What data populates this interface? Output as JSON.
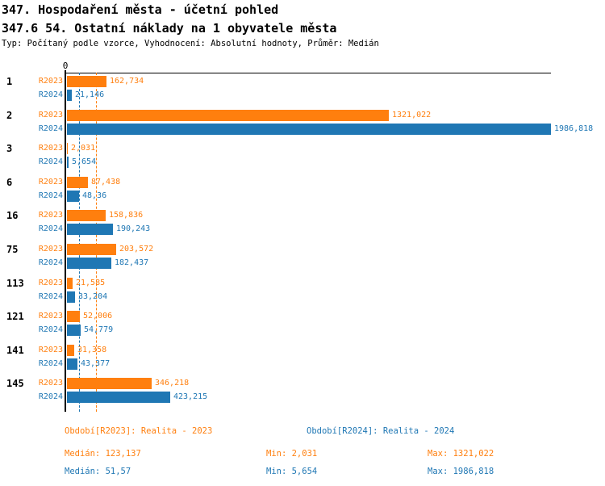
{
  "chart_data": {
    "type": "bar",
    "orientation": "horizontal",
    "title": "347. Hospodaření města - účetní pohled",
    "subtitle": "347.6 54. Ostatní náklady na 1 obyvatele města",
    "meta": "Typ: Počítaný podle vzorce, Vyhodnocení: Absolutní hodnoty, Průměr: Medián",
    "axis": {
      "zero_label": "0",
      "min": 0,
      "plot_max": 1986.818,
      "grid": false
    },
    "categories": [
      "1",
      "2",
      "3",
      "6",
      "16",
      "75",
      "113",
      "121",
      "141",
      "145"
    ],
    "series": [
      {
        "name": "R2023",
        "color": "#ff7f0e",
        "legend": "Období[R2023]: Realita - 2023",
        "values": [
          162.734,
          1321.022,
          2.031,
          87.438,
          158.836,
          203.572,
          21.585,
          52.006,
          31.358,
          346.218
        ],
        "value_labels": [
          "162,734",
          "1321,022",
          "2,031",
          "87,438",
          "158,836",
          "203,572",
          "21,585",
          "52,006",
          "31,358",
          "346,218"
        ],
        "median": 123.137,
        "stats": {
          "median": "Medián: 123,137",
          "min": "Min: 2,031",
          "max": "Max: 1321,022"
        }
      },
      {
        "name": "R2024",
        "color": "#1f77b4",
        "legend": "Období[R2024]: Realita - 2024",
        "values": [
          21.146,
          1986.818,
          5.654,
          48.36,
          190.243,
          182.437,
          33.204,
          54.779,
          43.377,
          423.215
        ],
        "value_labels": [
          "21,146",
          "1986,818",
          "5,654",
          "48,36",
          "190,243",
          "182,437",
          "33,204",
          "54,779",
          "43,377",
          "423,215"
        ],
        "median": 51.57,
        "stats": {
          "median": "Medián: 51,57",
          "min": "Min: 5,654",
          "max": "Max: 1986,818"
        }
      }
    ],
    "legend_position": "bottom"
  }
}
